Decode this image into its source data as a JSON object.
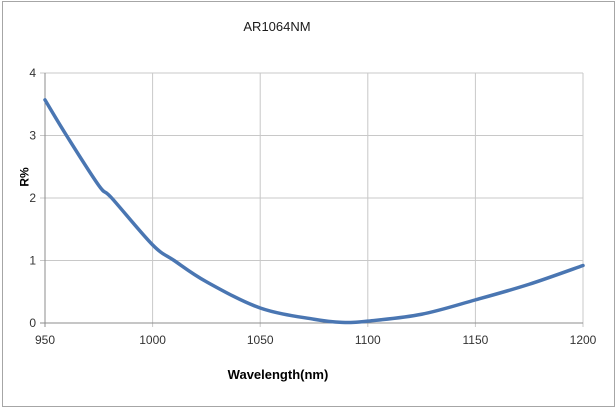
{
  "chart_data": {
    "type": "line",
    "title": "AR1064NM",
    "xlabel": "Wavelength(nm)",
    "ylabel": "R%",
    "xlim": [
      950,
      1200
    ],
    "ylim": [
      0,
      4
    ],
    "grid": true,
    "legend": null,
    "x_ticks": [
      "950",
      "1000",
      "1050",
      "1100",
      "1150",
      "1200"
    ],
    "y_ticks": [
      "0",
      "1",
      "2",
      "3",
      "4"
    ],
    "series": [
      {
        "name": "R%",
        "color": "#4a76b2",
        "x": [
          950,
          960,
          975,
          981,
          1000,
          1010,
          1025,
          1050,
          1075,
          1088,
          1100,
          1125,
          1150,
          1175,
          1200
        ],
        "values": [
          3.57,
          3.0,
          2.2,
          2.0,
          1.25,
          1.0,
          0.66,
          0.24,
          0.06,
          0.01,
          0.03,
          0.14,
          0.37,
          0.62,
          0.92
        ]
      }
    ]
  },
  "colors": {
    "line": "#4a76b2",
    "grid": "#c8c8c8",
    "axis": "#8c8c8c",
    "frame": "#a6a6a6"
  }
}
